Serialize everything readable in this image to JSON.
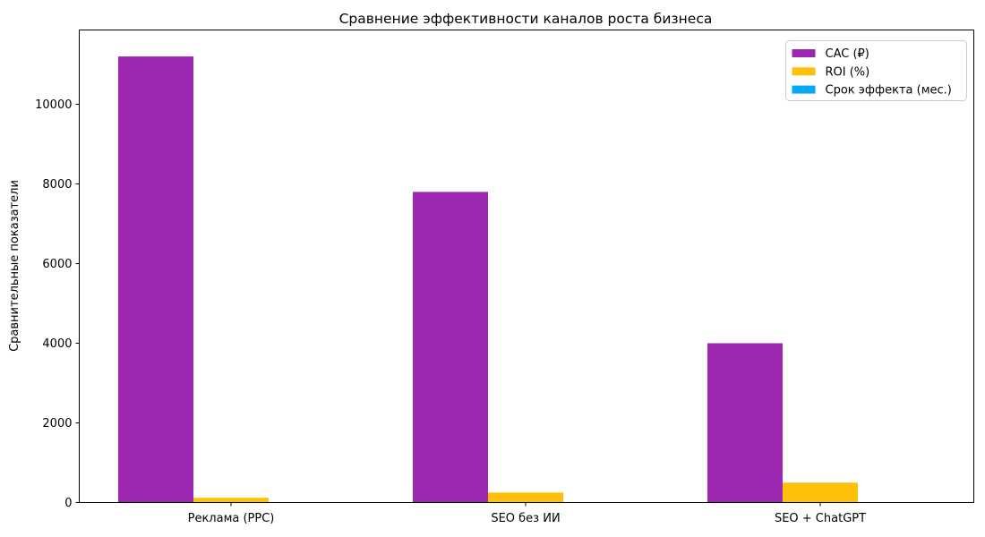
{
  "chart_data": {
    "type": "bar",
    "title": "Сравнение эффективности каналов роста бизнеса",
    "xlabel": "",
    "ylabel": "Сравнительные показатели",
    "categories": [
      "Реклама (PPC)",
      "SEO без ИИ",
      "SEO + ChatGPT"
    ],
    "series": [
      {
        "name": "CAC (₽)",
        "color": "#9c27b0",
        "values": [
          11200,
          7800,
          4000
        ]
      },
      {
        "name": "ROI (%)",
        "color": "#ffc107",
        "values": [
          120,
          250,
          500
        ]
      },
      {
        "name": "Срок эффекта (мес.)",
        "color": "#03a9f4",
        "values": [
          1,
          6,
          3
        ]
      }
    ],
    "yticks": [
      0,
      2000,
      4000,
      6000,
      8000,
      10000
    ],
    "ylim": [
      0,
      11865
    ],
    "grid": false,
    "legend_position": "upper right",
    "colors": {
      "axis": "#000000",
      "background": "#ffffff",
      "legend_border": "#cccccc"
    }
  }
}
